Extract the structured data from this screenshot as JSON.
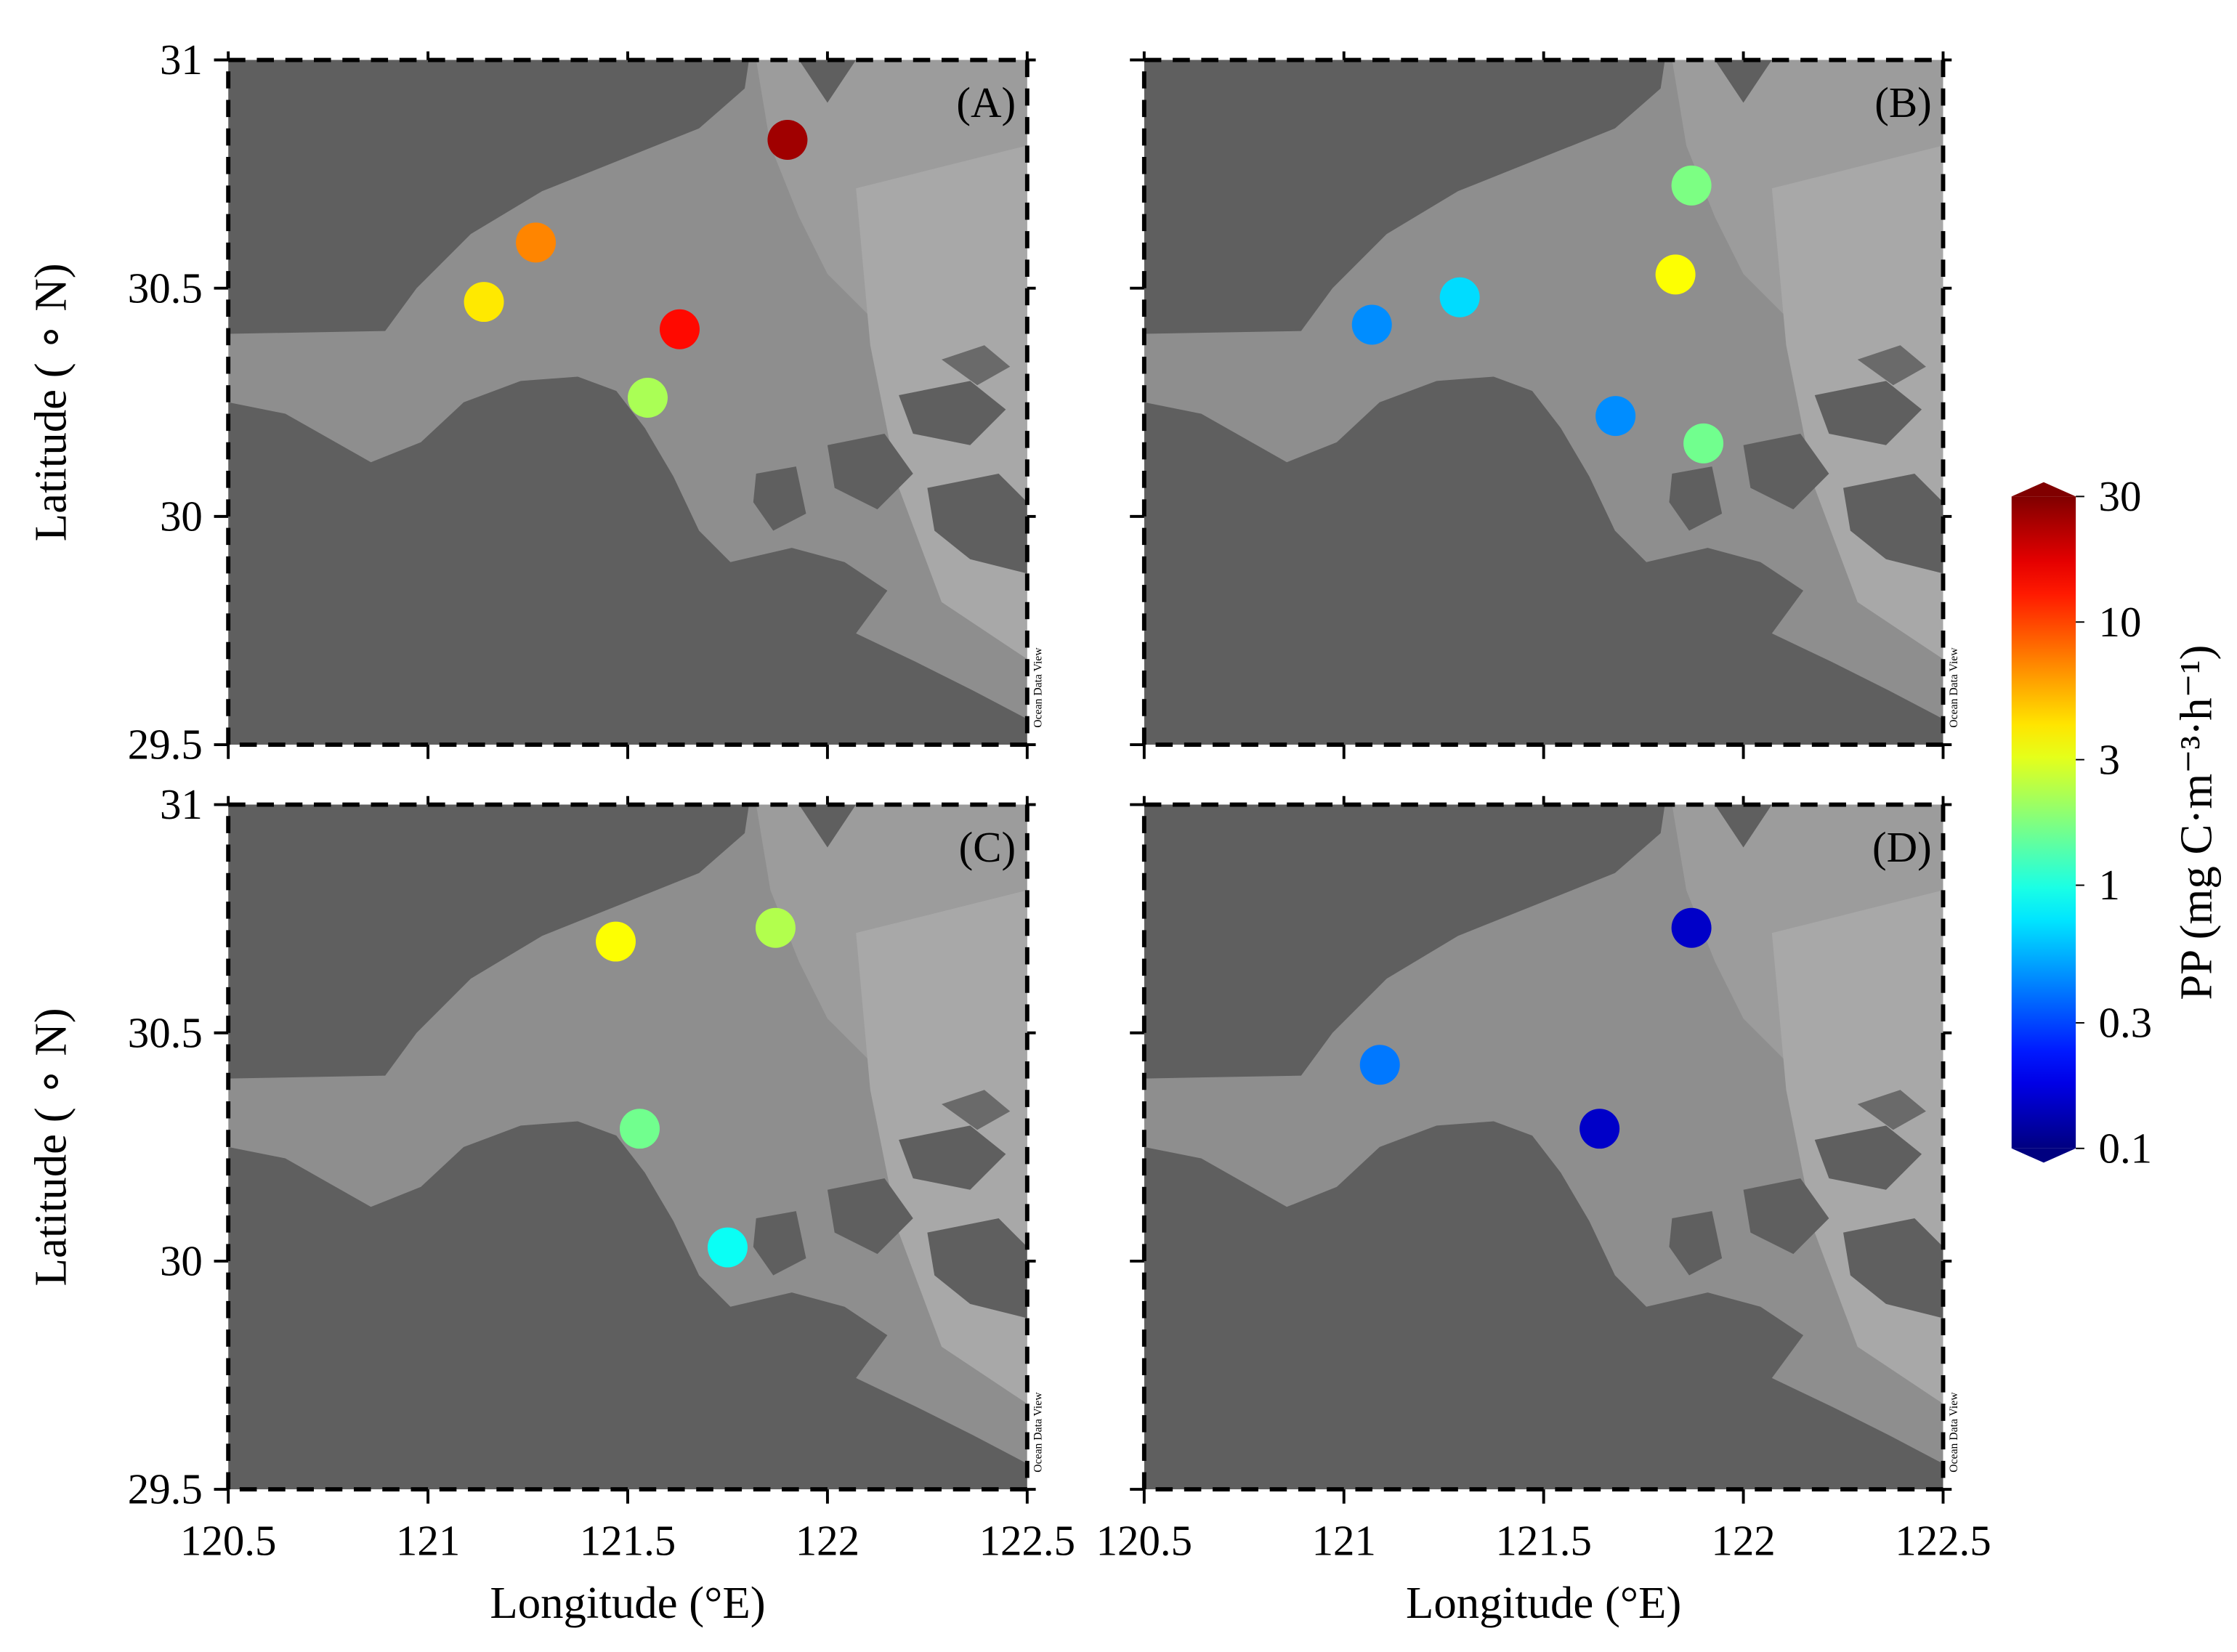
{
  "chart_data": [
    {
      "type": "scatter",
      "panel": "(A)",
      "ylabel": "Latitude ( ∘ N)",
      "watermark": "Ocean Data View",
      "x": [
        121.9,
        121.27,
        121.14,
        121.63,
        121.55
      ],
      "y": [
        30.825,
        30.6,
        30.47,
        30.41,
        30.26
      ],
      "values": [
        25,
        7,
        4,
        14,
        2.2
      ],
      "xlim": [
        120.5,
        122.5
      ],
      "ylim": [
        29.5,
        31
      ],
      "xticks": [
        120.5,
        121,
        121.5,
        122,
        122.5
      ],
      "yticks": [
        29.5,
        30,
        30.5,
        31
      ]
    },
    {
      "type": "scatter",
      "panel": "(B)",
      "watermark": "Ocean Data View",
      "x": [
        121.87,
        121.83,
        121.29,
        121.07,
        121.68,
        121.9
      ],
      "y": [
        30.725,
        30.53,
        30.48,
        30.42,
        30.22,
        30.16
      ],
      "values": [
        1.7,
        3.5,
        0.7,
        0.45,
        0.45,
        1.6
      ],
      "xlim": [
        120.5,
        122.5
      ],
      "ylim": [
        29.5,
        31
      ],
      "xticks": [
        120.5,
        121,
        121.5,
        122,
        122.5
      ],
      "yticks": [
        29.5,
        30,
        30.5,
        31
      ]
    },
    {
      "type": "scatter",
      "panel": "(C)",
      "ylabel": "Latitude ( ∘ N)",
      "xlabel": "Longitude (°E)",
      "watermark": "Ocean Data View",
      "x": [
        121.47,
        121.87,
        121.53,
        121.75
      ],
      "y": [
        30.7,
        30.73,
        30.29,
        30.03
      ],
      "values": [
        3.5,
        2.3,
        1.6,
        0.9
      ],
      "xlim": [
        120.5,
        122.5
      ],
      "ylim": [
        29.5,
        31
      ],
      "xticks": [
        120.5,
        121,
        121.5,
        122,
        122.5
      ],
      "yticks": [
        29.5,
        30,
        30.5,
        31
      ]
    },
    {
      "type": "scatter",
      "panel": "(D)",
      "xlabel": "Longitude (°E)",
      "watermark": "Ocean Data View",
      "x": [
        121.87,
        121.09,
        121.64
      ],
      "y": [
        30.73,
        30.43,
        30.29
      ],
      "values": [
        0.15,
        0.4,
        0.15
      ],
      "xlim": [
        120.5,
        122.5
      ],
      "ylim": [
        29.5,
        31
      ],
      "xticks": [
        120.5,
        121,
        121.5,
        122,
        122.5
      ],
      "yticks": [
        29.5,
        30,
        30.5,
        31
      ]
    }
  ],
  "colorbar": {
    "label": "PP (mg C·m⁻³·h⁻¹)",
    "scale": "log",
    "colormap": "jet",
    "lim": [
      0.1,
      30
    ],
    "ticks": [
      30,
      10,
      3,
      1,
      0.3,
      0.1
    ]
  }
}
